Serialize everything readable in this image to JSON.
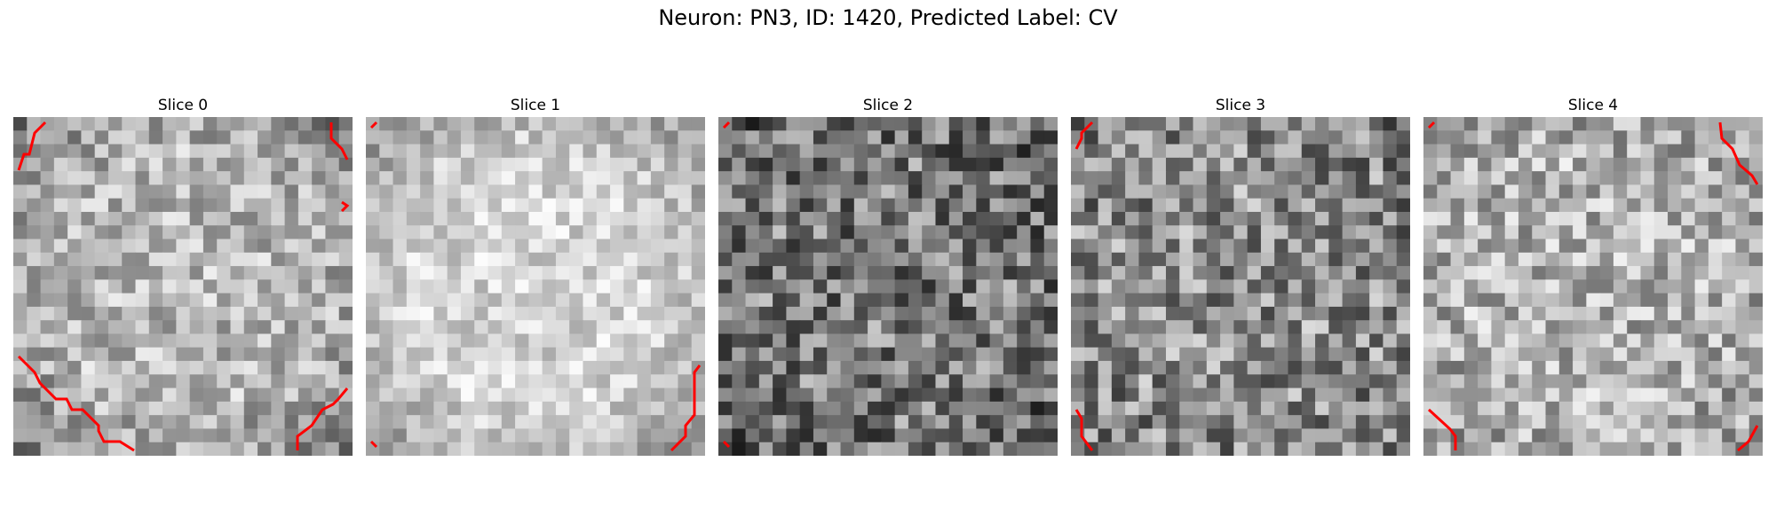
{
  "figure": {
    "title": "Neuron: PN3, ID: 1420, Predicted Label: CV"
  },
  "slices": [
    {
      "title": "Slice 0",
      "brightness": 0.72,
      "spread": 0.22,
      "edge_darkening": 0.35,
      "seed": 11
    },
    {
      "title": "Slice 1",
      "brightness": 0.83,
      "spread": 0.16,
      "edge_darkening": 0.4,
      "seed": 23
    },
    {
      "title": "Slice 2",
      "brightness": 0.48,
      "spread": 0.3,
      "edge_darkening": 0.2,
      "seed": 37
    },
    {
      "title": "Slice 3",
      "brightness": 0.56,
      "spread": 0.3,
      "edge_darkening": 0.12,
      "seed": 41
    },
    {
      "title": "Slice 4",
      "brightness": 0.7,
      "spread": 0.25,
      "edge_darkening": 0.15,
      "seed": 59
    }
  ],
  "colors": {
    "contour": "#ff0000",
    "background": "#ffffff",
    "text": "#000000"
  }
}
